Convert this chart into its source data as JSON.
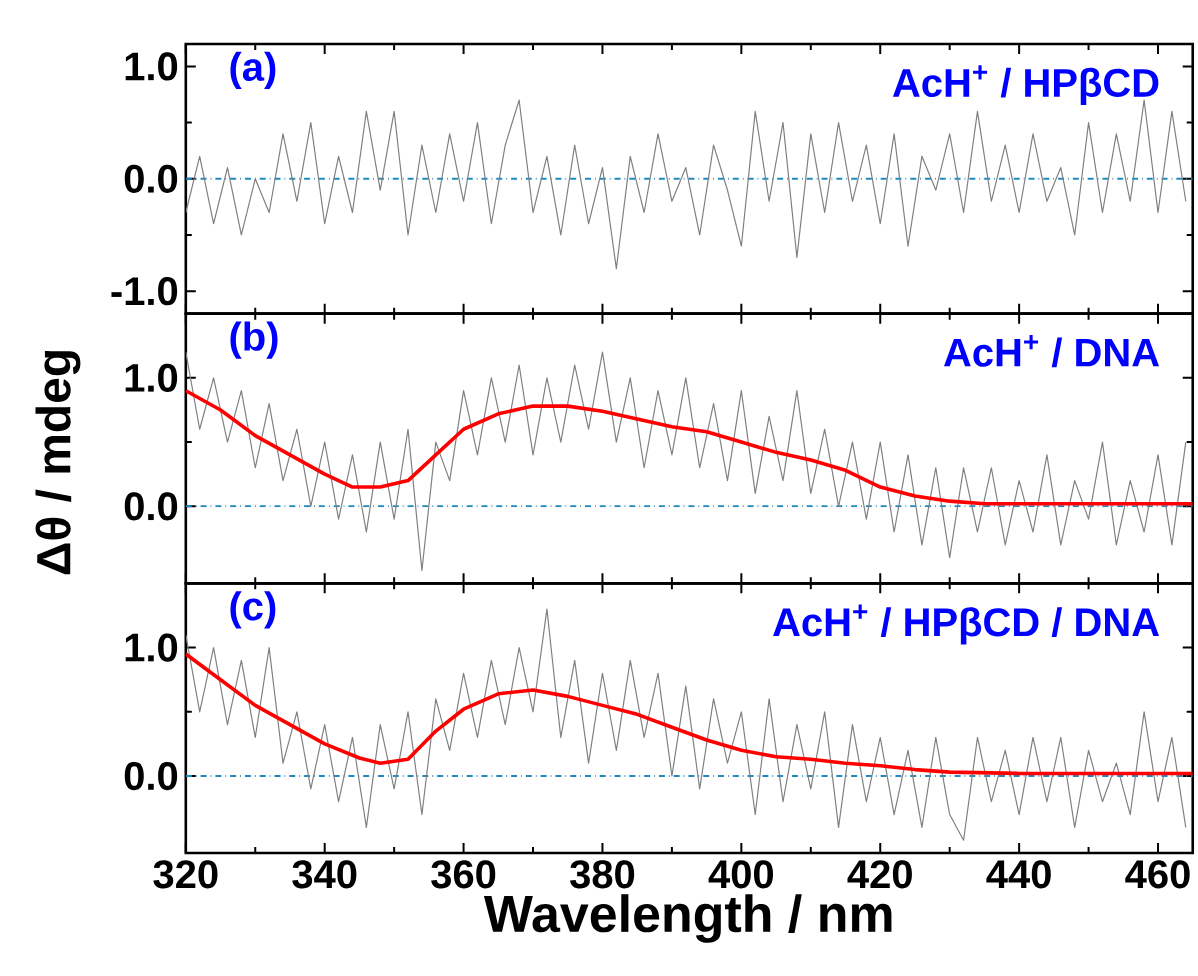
{
  "chart_data": [
    {
      "type": "line",
      "annotations": [
        "(a)",
        "AcH$^{+}$ / HPβCD"
      ],
      "xlim": [
        320,
        465
      ],
      "xticks": [
        320,
        340,
        360,
        380,
        400,
        420,
        440,
        460
      ],
      "ylim": [
        -1.2,
        1.2
      ],
      "yticks": [
        {
          "value": -1,
          "label": "-1.0"
        },
        {
          "value": 0,
          "label": "0.0"
        },
        {
          "value": 1,
          "label": "1.0"
        }
      ],
      "tick_labels": "y",
      "ref_lines": [
        {
          "axis": "y",
          "value": 0,
          "color": "#1f8ac0",
          "line_style": "dashdot"
        }
      ],
      "series": [
        {
          "color": "#808080",
          "x": [
            320,
            322,
            324,
            326,
            328,
            330,
            332,
            334,
            336,
            338,
            340,
            342,
            344,
            346,
            348,
            350,
            352,
            354,
            356,
            358,
            360,
            362,
            364,
            366,
            368,
            370,
            372,
            374,
            376,
            378,
            380,
            382,
            384,
            386,
            388,
            390,
            392,
            394,
            396,
            398,
            400,
            402,
            404,
            406,
            408,
            410,
            412,
            414,
            416,
            418,
            420,
            422,
            424,
            426,
            428,
            430,
            432,
            434,
            436,
            438,
            440,
            442,
            444,
            446,
            448,
            450,
            452,
            454,
            456,
            458,
            460,
            462,
            464
          ],
          "values": [
            -0.3,
            0.2,
            -0.4,
            0.1,
            -0.5,
            0.0,
            -0.3,
            0.4,
            -0.2,
            0.5,
            -0.4,
            0.2,
            -0.3,
            0.6,
            -0.1,
            0.6,
            -0.5,
            0.3,
            -0.3,
            0.4,
            -0.2,
            0.5,
            -0.4,
            0.3,
            0.7,
            -0.3,
            0.2,
            -0.5,
            0.3,
            -0.4,
            0.1,
            -0.8,
            0.2,
            -0.3,
            0.4,
            -0.2,
            0.1,
            -0.5,
            0.3,
            -0.1,
            -0.6,
            0.6,
            -0.2,
            0.5,
            -0.7,
            0.4,
            -0.3,
            0.5,
            -0.2,
            0.3,
            -0.4,
            0.4,
            -0.6,
            0.2,
            -0.1,
            0.4,
            -0.3,
            0.6,
            -0.2,
            0.3,
            -0.3,
            0.4,
            -0.2,
            0.1,
            -0.5,
            0.5,
            -0.3,
            0.4,
            -0.2,
            0.7,
            -0.3,
            0.6,
            -0.2
          ]
        }
      ]
    },
    {
      "type": "line",
      "ylabel": "Δθ / mdeg",
      "annotations": [
        "(b)",
        "AcH$^{+}$ / DNA"
      ],
      "xlim": [
        320,
        465
      ],
      "xticks": [
        320,
        340,
        360,
        380,
        400,
        420,
        440,
        460
      ],
      "ylim": [
        -0.6,
        1.5
      ],
      "yticks": [
        {
          "value": 0,
          "label": "0.0"
        },
        {
          "value": 1,
          "label": "1.0"
        }
      ],
      "tick_labels": "y",
      "ref_lines": [
        {
          "axis": "y",
          "value": 0,
          "color": "#1f8ac0",
          "line_style": "dashdot"
        }
      ],
      "series": [
        {
          "color": "#808080",
          "x": [
            320,
            322,
            324,
            326,
            328,
            330,
            332,
            334,
            336,
            338,
            340,
            342,
            344,
            346,
            348,
            350,
            352,
            354,
            356,
            358,
            360,
            362,
            364,
            366,
            368,
            370,
            372,
            374,
            376,
            378,
            380,
            382,
            384,
            386,
            388,
            390,
            392,
            394,
            396,
            398,
            400,
            402,
            404,
            406,
            408,
            410,
            412,
            414,
            416,
            418,
            420,
            422,
            424,
            426,
            428,
            430,
            432,
            434,
            436,
            438,
            440,
            442,
            444,
            446,
            448,
            450,
            452,
            454,
            456,
            458,
            460,
            462,
            464
          ],
          "values": [
            1.2,
            0.6,
            1.0,
            0.5,
            0.9,
            0.3,
            0.8,
            0.2,
            0.6,
            0.0,
            0.5,
            -0.1,
            0.4,
            -0.2,
            0.5,
            -0.1,
            0.6,
            -0.5,
            0.5,
            0.2,
            0.9,
            0.4,
            1.0,
            0.5,
            1.1,
            0.4,
            1.0,
            0.5,
            1.1,
            0.6,
            1.2,
            0.5,
            1.0,
            0.3,
            0.9,
            0.4,
            1.0,
            0.3,
            0.8,
            0.2,
            0.9,
            0.1,
            0.7,
            0.2,
            0.9,
            0.1,
            0.6,
            0.0,
            0.5,
            -0.1,
            0.5,
            -0.2,
            0.4,
            -0.3,
            0.3,
            -0.4,
            0.3,
            -0.2,
            0.3,
            -0.3,
            0.2,
            -0.2,
            0.4,
            -0.3,
            0.2,
            -0.1,
            0.5,
            -0.3,
            0.2,
            -0.2,
            0.4,
            -0.3,
            0.5
          ]
        },
        {
          "color": "#ff0000",
          "x": [
            320,
            325,
            330,
            335,
            340,
            344,
            348,
            352,
            356,
            360,
            365,
            370,
            375,
            380,
            385,
            390,
            395,
            400,
            405,
            410,
            415,
            420,
            425,
            430,
            435,
            440,
            450,
            465
          ],
          "values": [
            0.9,
            0.75,
            0.55,
            0.4,
            0.25,
            0.15,
            0.15,
            0.2,
            0.4,
            0.6,
            0.72,
            0.78,
            0.78,
            0.74,
            0.68,
            0.62,
            0.58,
            0.5,
            0.42,
            0.36,
            0.28,
            0.15,
            0.08,
            0.04,
            0.02,
            0.02,
            0.02,
            0.02
          ]
        }
      ]
    },
    {
      "type": "line",
      "xlabel": "Wavelength / nm",
      "annotations": [
        "(c)",
        "AcH$^{+}$ / HPβCD / DNA"
      ],
      "xlim": [
        320,
        465
      ],
      "xticks": [
        {
          "value": 320,
          "label": "320"
        },
        {
          "value": 340,
          "label": "340"
        },
        {
          "value": 360,
          "label": "360"
        },
        {
          "value": 380,
          "label": "380"
        },
        {
          "value": 400,
          "label": "400"
        },
        {
          "value": 420,
          "label": "420"
        },
        {
          "value": 440,
          "label": "440"
        },
        {
          "value": 460,
          "label": "460"
        }
      ],
      "ylim": [
        -0.6,
        1.5
      ],
      "yticks": [
        {
          "value": 0,
          "label": "0.0"
        },
        {
          "value": 1,
          "label": "1.0"
        }
      ],
      "ref_lines": [
        {
          "axis": "y",
          "value": 0,
          "color": "#1f8ac0",
          "line_style": "dashdot"
        }
      ],
      "series": [
        {
          "color": "#808080",
          "x": [
            320,
            322,
            324,
            326,
            328,
            330,
            332,
            334,
            336,
            338,
            340,
            342,
            344,
            346,
            348,
            350,
            352,
            354,
            356,
            358,
            360,
            362,
            364,
            366,
            368,
            370,
            372,
            374,
            376,
            378,
            380,
            382,
            384,
            386,
            388,
            390,
            392,
            394,
            396,
            398,
            400,
            402,
            404,
            406,
            408,
            410,
            412,
            414,
            416,
            418,
            420,
            422,
            424,
            426,
            428,
            430,
            432,
            434,
            436,
            438,
            440,
            442,
            444,
            446,
            448,
            450,
            452,
            454,
            456,
            458,
            460,
            462,
            464
          ],
          "values": [
            1.1,
            0.5,
            1.0,
            0.4,
            0.9,
            0.3,
            1.0,
            0.1,
            0.5,
            -0.1,
            0.4,
            -0.2,
            0.3,
            -0.4,
            0.4,
            -0.1,
            0.5,
            -0.3,
            0.6,
            0.2,
            0.8,
            0.3,
            0.9,
            0.4,
            1.0,
            0.5,
            1.3,
            0.3,
            0.9,
            0.1,
            0.8,
            0.2,
            0.9,
            0.3,
            0.8,
            0.0,
            0.7,
            -0.1,
            0.6,
            0.1,
            0.5,
            -0.3,
            0.6,
            -0.2,
            0.4,
            -0.1,
            0.5,
            -0.4,
            0.4,
            -0.2,
            0.3,
            -0.3,
            0.2,
            -0.4,
            0.3,
            -0.3,
            -0.5,
            0.3,
            -0.2,
            0.2,
            -0.3,
            0.3,
            -0.2,
            0.3,
            -0.4,
            0.2,
            -0.2,
            0.1,
            -0.3,
            0.5,
            -0.2,
            0.3,
            -0.4
          ]
        },
        {
          "color": "#ff0000",
          "x": [
            320,
            325,
            330,
            335,
            340,
            345,
            348,
            352,
            356,
            360,
            365,
            370,
            375,
            380,
            385,
            390,
            395,
            400,
            405,
            410,
            415,
            420,
            425,
            430,
            440,
            450,
            465
          ],
          "values": [
            0.95,
            0.75,
            0.55,
            0.4,
            0.25,
            0.14,
            0.1,
            0.13,
            0.35,
            0.52,
            0.64,
            0.67,
            0.62,
            0.55,
            0.48,
            0.38,
            0.28,
            0.2,
            0.15,
            0.13,
            0.1,
            0.08,
            0.05,
            0.03,
            0.02,
            0.02,
            0.02
          ]
        }
      ]
    }
  ]
}
